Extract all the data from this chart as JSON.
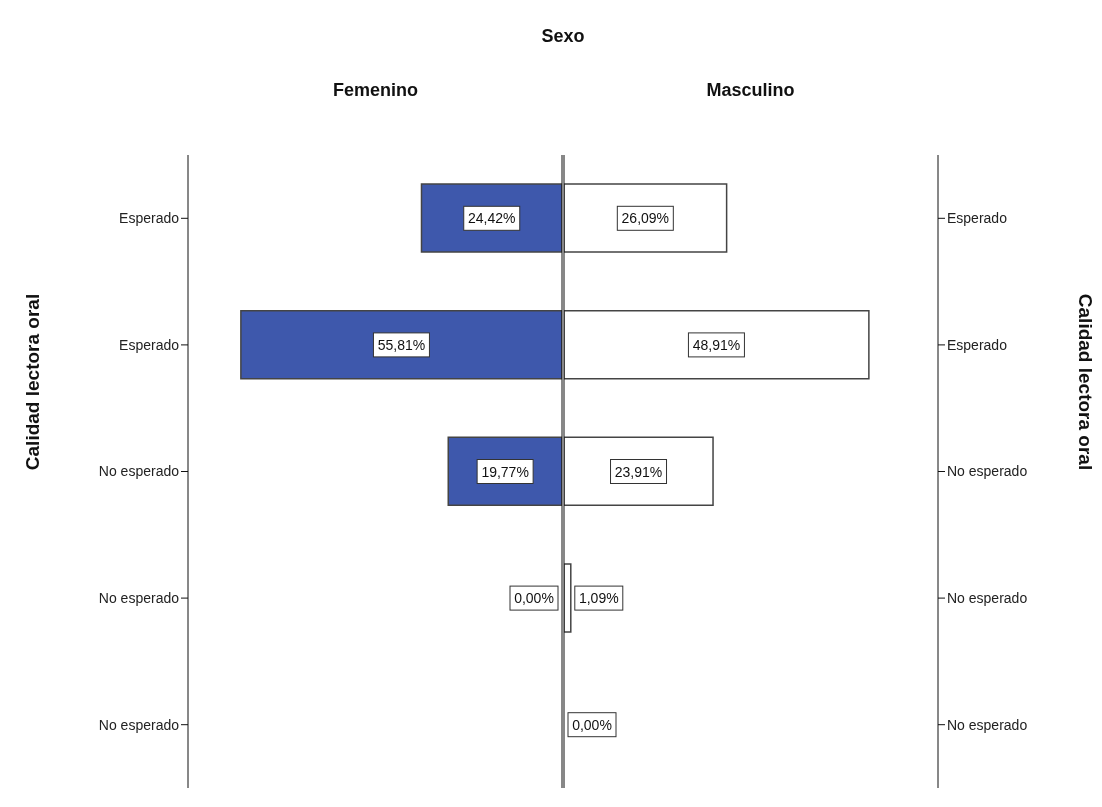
{
  "chart_data": [
    {
      "type": "bar",
      "orientation": "horizontal",
      "title": "Femenino",
      "annotations": [
        "Sexo"
      ],
      "ylabel": "Calidad lectora oral",
      "categories": [
        "Esperado",
        "Esperado",
        "No esperado",
        "No esperado",
        "No esperado"
      ],
      "xlim": [
        65,
        0
      ],
      "tick_labels": "y",
      "series": [
        {
          "color": "#3e58ac",
          "values": [
            24.42,
            55.81,
            19.77,
            0,
            0
          ],
          "value_labels": [
            "24,42%",
            "55,81%",
            "19,77%",
            "0,00%",
            null
          ]
        }
      ]
    },
    {
      "type": "bar",
      "orientation": "horizontal",
      "title": "Masculino",
      "ylabel": "Calidad lectora oral",
      "categories": [
        "Esperado",
        "Esperado",
        "No esperado",
        "No esperado",
        "No esperado"
      ],
      "xlim": [
        0,
        60
      ],
      "tick_labels": "y",
      "series": [
        {
          "color": "#ffffff",
          "values": [
            26.09,
            48.91,
            23.91,
            1.09,
            0
          ],
          "value_labels": [
            "26,09%",
            "48,91%",
            "23,91%",
            "1,09%",
            "0,00%"
          ]
        }
      ]
    }
  ]
}
